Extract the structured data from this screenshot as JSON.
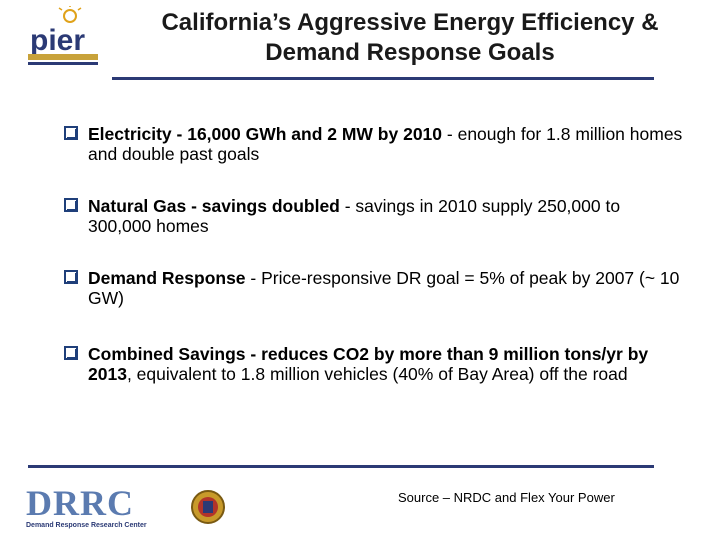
{
  "slide": {
    "title_line1": "California’s Aggressive Energy Efficiency &",
    "title_line2": "Demand Response Goals"
  },
  "logos": {
    "pier": "pier",
    "drrc": "DRRC",
    "drrc_subtitle": "Demand Response Research Center"
  },
  "bullets": [
    {
      "bold": "Electricity - 16,000 GWh and 2 MW by 2010",
      "normal": " - enough for 1.8 million homes and double past goals"
    },
    {
      "bold": "Natural Gas - savings doubled",
      "normal": " - savings in 2010 supply 250,000 to 300,000 homes"
    },
    {
      "bold": "Demand Response",
      "normal": " -  Price-responsive DR goal = 5% of peak by 2007 (~ 10 GW)"
    },
    {
      "bold": "Combined Savings - reduces CO2 by more than 9 million tons/yr by 2013",
      "normal": ", equivalent to 1.8 million vehicles (40% of Bay Area) off the road"
    }
  ],
  "footer": {
    "source": "Source – NRDC and Flex Your Power"
  },
  "colors": {
    "rule": "#2b3a75",
    "bullet_box": "#1f3f7a"
  }
}
